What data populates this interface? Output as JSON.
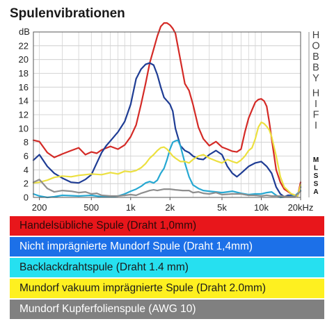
{
  "title": "Spulenvibrationen",
  "chart_data": {
    "type": "line",
    "title": "Spulenvibrationen",
    "xlabel": "",
    "ylabel": "dB",
    "x_scale": "log",
    "xlim": [
      180,
      20000
    ],
    "ylim": [
      0,
      24
    ],
    "x_ticks": [
      {
        "value": 200,
        "label": "200"
      },
      {
        "value": 500,
        "label": "500"
      },
      {
        "value": 1000,
        "label": "1k"
      },
      {
        "value": 2000,
        "label": "2k"
      },
      {
        "value": 5000,
        "label": "5k"
      },
      {
        "value": 10000,
        "label": "10k"
      },
      {
        "value": 20000,
        "label": "20kHz"
      }
    ],
    "y_ticks": [
      0,
      2,
      4,
      6,
      8,
      10,
      12,
      14,
      16,
      18,
      20,
      22
    ],
    "y_unit": "dB",
    "grid": true,
    "right_scale": {
      "groups": [
        "HOBBY",
        "HIFI"
      ],
      "levels": [
        "M",
        "L",
        "S",
        "S",
        "A"
      ]
    },
    "series": [
      {
        "name": "Handelsübliche Spule (Draht 1,0mm)",
        "color": "#d42a26",
        "x": [
          180,
          200,
          230,
          260,
          300,
          350,
          400,
          450,
          500,
          550,
          600,
          700,
          800,
          900,
          1000,
          1100,
          1200,
          1300,
          1400,
          1500,
          1600,
          1700,
          1800,
          1900,
          2000,
          2100,
          2200,
          2400,
          2600,
          2800,
          3000,
          3300,
          3600,
          4000,
          4500,
          5000,
          5500,
          6000,
          6500,
          7000,
          7500,
          8000,
          8500,
          9000,
          9500,
          10000,
          10500,
          11000,
          11500,
          12000,
          13000,
          14000,
          15000,
          17000,
          19000,
          20000
        ],
        "y": [
          8.3,
          8.1,
          6.5,
          5.8,
          6.3,
          6.8,
          7.2,
          6.2,
          6.6,
          6.4,
          6.9,
          7.4,
          7.0,
          7.6,
          8.8,
          10.5,
          13.5,
          16.5,
          19.5,
          21.5,
          23.4,
          24.8,
          25.3,
          25.3,
          25.0,
          24.5,
          23.8,
          20.0,
          16.5,
          15.5,
          13.5,
          10.2,
          8.5,
          7.5,
          8.1,
          7.3,
          7.0,
          6.7,
          6.6,
          7.0,
          9.5,
          11.5,
          12.7,
          13.8,
          14.2,
          14.3,
          14.0,
          13.2,
          11.0,
          8.5,
          4.0,
          2.2,
          1.2,
          0.5,
          0.2,
          2.2
        ]
      },
      {
        "name": "Nicht imprägnierte Mundorf Spule (Draht 1,4mm)",
        "color": "#1e3c94",
        "x": [
          180,
          200,
          230,
          260,
          300,
          350,
          400,
          450,
          500,
          550,
          600,
          650,
          700,
          800,
          900,
          1000,
          1100,
          1200,
          1300,
          1400,
          1500,
          1600,
          1700,
          1800,
          1900,
          2000,
          2100,
          2200,
          2400,
          2600,
          2800,
          3000,
          3300,
          3600,
          4000,
          4500,
          5000,
          5500,
          6000,
          6500,
          7000,
          8000,
          9000,
          10000,
          11000,
          12000,
          13000,
          14000,
          15000,
          16000,
          17000,
          19000,
          20000
        ],
        "y": [
          5.4,
          6.2,
          4.5,
          3.5,
          2.8,
          2.2,
          2.1,
          2.6,
          3.3,
          5.0,
          6.5,
          7.5,
          8.2,
          9.5,
          11.0,
          13.5,
          17.2,
          18.6,
          19.3,
          19.5,
          19.2,
          17.8,
          16.0,
          14.5,
          14.0,
          13.5,
          12.5,
          10.0,
          7.5,
          6.8,
          6.5,
          6.0,
          5.6,
          5.5,
          6.2,
          6.8,
          6.2,
          4.5,
          3.5,
          3.0,
          3.5,
          4.5,
          5.0,
          5.2,
          4.5,
          3.5,
          1.5,
          0.5,
          0.1,
          0.3,
          0.3,
          0.2,
          1.5
        ]
      },
      {
        "name": "Backlackdrahtspule (Draht 1.4 mm)",
        "color": "#26a8d2",
        "x": [
          180,
          200,
          230,
          260,
          300,
          400,
          500,
          600,
          700,
          800,
          900,
          1000,
          1100,
          1200,
          1300,
          1400,
          1500,
          1600,
          1700,
          1800,
          1900,
          2000,
          2100,
          2200,
          2300,
          2400,
          2600,
          2800,
          3000,
          3300,
          3600,
          4000,
          4500,
          5000,
          5500,
          6000,
          7000,
          8000,
          9000,
          10000,
          11000,
          12000,
          13000,
          14000,
          16000,
          18000,
          20000
        ],
        "y": [
          0.5,
          0.2,
          0.0,
          0.1,
          0.3,
          0.2,
          0.3,
          0.1,
          0.1,
          0.2,
          0.5,
          0.9,
          1.2,
          1.6,
          2.1,
          2.3,
          2.1,
          2.5,
          3.5,
          4.2,
          5.5,
          7.0,
          8.0,
          8.2,
          8.3,
          7.5,
          5.0,
          3.0,
          1.8,
          1.3,
          1.0,
          0.9,
          0.8,
          0.7,
          0.8,
          0.9,
          0.6,
          0.4,
          0.5,
          0.5,
          0.7,
          0.8,
          0.3,
          0.0,
          0.1,
          0.2,
          1.0
        ]
      },
      {
        "name": "Mundorf vakuum imprägnierte Spule (Draht 2.0mm)",
        "color": "#ece040",
        "x": [
          180,
          200,
          230,
          260,
          300,
          350,
          400,
          450,
          500,
          600,
          700,
          800,
          900,
          1000,
          1100,
          1200,
          1300,
          1400,
          1500,
          1600,
          1700,
          1800,
          1900,
          2000,
          2100,
          2200,
          2400,
          2600,
          2800,
          3000,
          3300,
          3600,
          4000,
          4500,
          5000,
          5500,
          6000,
          6500,
          7000,
          7500,
          8000,
          8500,
          9000,
          9500,
          10000,
          10500,
          11000,
          11500,
          12000,
          13000,
          14000,
          15000,
          17000,
          19000,
          20000
        ],
        "y": [
          2.1,
          2.2,
          2.5,
          2.9,
          3.1,
          3.0,
          3.2,
          3.3,
          3.4,
          3.3,
          3.6,
          3.4,
          3.8,
          3.7,
          3.9,
          4.3,
          4.9,
          5.7,
          6.2,
          6.8,
          7.2,
          7.3,
          7.0,
          6.5,
          6.0,
          5.7,
          5.2,
          5.2,
          5.0,
          5.5,
          6.0,
          6.2,
          5.7,
          5.3,
          5.0,
          5.5,
          5.2,
          5.0,
          5.4,
          6.0,
          6.8,
          7.2,
          8.5,
          10.2,
          10.9,
          10.7,
          10.3,
          9.8,
          8.8,
          6.0,
          3.0,
          1.5,
          0.5,
          0.2,
          1.8
        ]
      },
      {
        "name": "Mundorf Kupferfolienspule (AWG 10)",
        "color": "#8e8e8e",
        "x": [
          180,
          200,
          230,
          260,
          300,
          350,
          400,
          450,
          500,
          550,
          600,
          700,
          800,
          900,
          1000,
          1100,
          1200,
          1300,
          1400,
          1500,
          1600,
          1800,
          2000,
          2200,
          2500,
          2800,
          3000,
          3300,
          3600,
          4000,
          4500,
          5000,
          6000,
          7000,
          8000,
          9000,
          10000,
          11000,
          12000,
          14000,
          16000,
          18000,
          20000
        ],
        "y": [
          2.2,
          2.6,
          1.3,
          0.8,
          1.0,
          0.9,
          0.7,
          0.8,
          0.5,
          0.6,
          0.3,
          0.2,
          0.2,
          0.3,
          0.4,
          0.3,
          0.6,
          0.8,
          1.0,
          1.1,
          1.0,
          1.2,
          1.2,
          1.1,
          1.0,
          1.0,
          0.7,
          0.8,
          0.6,
          0.5,
          0.7,
          0.4,
          0.5,
          0.5,
          0.3,
          0.3,
          0.2,
          0.3,
          0.2,
          0.2,
          0.1,
          0.1,
          0.9
        ]
      }
    ]
  },
  "legend": {
    "items": [
      {
        "label": "Handelsübliche Spule (Draht 1,0mm)",
        "bg": "#e8161b",
        "fg": "#2a0a0a"
      },
      {
        "label": "Nicht imprägnierte Mundorf Spule (Draht 1,4mm)",
        "bg": "#1c70e8",
        "fg": "#ffffff"
      },
      {
        "label": "Backlackdrahtspule (Draht 1.4 mm)",
        "bg": "#26e0f0",
        "fg": "#1a1a1a"
      },
      {
        "label": "Mundorf vakuum imprägnierte Spule (Draht 2.0mm)",
        "bg": "#fef020",
        "fg": "#1a1a1a"
      },
      {
        "label": "Mundorf Kupferfolienspule (AWG 10)",
        "bg": "#808080",
        "fg": "#ffffff"
      }
    ]
  }
}
